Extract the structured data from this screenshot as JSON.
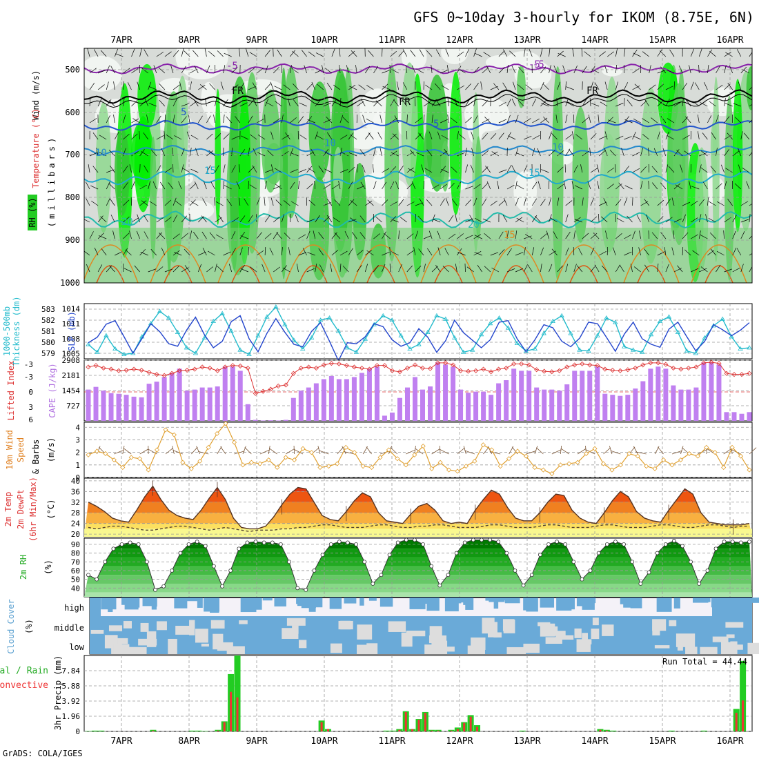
{
  "title": "GFS 0~10day 3-hourly for IKOM (8.75E, 6N)",
  "footer": "GrADS: COLA/IGES",
  "date_labels": [
    "7APR",
    "8APR",
    "9APR",
    "10APR",
    "11APR",
    "12APR",
    "13APR",
    "14APR",
    "15APR",
    "16APR"
  ],
  "colors": {
    "rh_green": "#22cc22",
    "rh_bright": "#00ff00",
    "cape_bar": "#c080f0",
    "li_line": "#dd3333",
    "slp_line": "#2244cc",
    "thk_line": "#22bbcc",
    "wind_line": "#e0a030",
    "precip_total": "#22cc22",
    "precip_conv": "#ee3333",
    "cloud_blue": "#6aaad8",
    "cloud_bg": "#f4f2f8"
  },
  "panels": {
    "profile": {
      "ylabel_wind": "Wind (m/s)",
      "ylabel_temp": "Temperature (°C)",
      "ylabel_rh": "RH (%)",
      "ylabel_p": "(millibars)",
      "levels": [
        "500",
        "600",
        "700",
        "800",
        "900",
        "1000"
      ],
      "contour_labels": [
        "-5",
        "FR",
        "5",
        "10",
        "15",
        "20",
        "-5",
        "FR",
        "5",
        "10",
        "15",
        "20",
        "10",
        "15",
        "FR",
        "-5"
      ]
    },
    "slp": {
      "ylabel_left": "1000-500mb",
      "ylabel_left2": "Thickness (dm)",
      "ylabel_right": "SLP (mb)",
      "thk_ticks": [
        "583",
        "582",
        "581",
        "580",
        "579"
      ],
      "slp_ticks": [
        "1014",
        "1011",
        "1008",
        "1005"
      ]
    },
    "cape": {
      "ylabel_left": "Lifted Index",
      "ylabel_right": "CAPE (J/kg)",
      "li_ticks": [
        "-3",
        "-3",
        "0",
        "3",
        "6"
      ],
      "cape_ticks": [
        "2908",
        "2181",
        "1454",
        "727"
      ]
    },
    "wind": {
      "ylabel1": "10m Wind",
      "ylabel2": "Speed",
      "ylabel3": "& Barbs",
      "unit": "(m/s)",
      "ticks": [
        "4",
        "3",
        "2",
        "1",
        "0"
      ]
    },
    "temp": {
      "ylabel1": "2m Temp",
      "ylabel2": "2m DewPt",
      "ylabel3": "(6hr Min/Max)",
      "unit": "(°C)",
      "ticks": [
        "40",
        "36",
        "32",
        "28",
        "24",
        "20"
      ]
    },
    "rh": {
      "ylabel": "2m RH",
      "unit": "(%)",
      "ticks": [
        "90",
        "80",
        "70",
        "60",
        "50",
        "40"
      ]
    },
    "cloud": {
      "ylabel": "Cloud Cover",
      "unit": "(%)",
      "levels": [
        "high",
        "middle",
        "low"
      ]
    },
    "precip": {
      "ylabel1": "Total / Rain",
      "ylabel2": "Convective",
      "ylabel3": "3hr Precip (mm)",
      "ticks": [
        "7.84",
        "5.88",
        "3.92",
        "1.96",
        "0"
      ],
      "run_total": "Run Total = 44.44"
    }
  },
  "chart_data": [
    {
      "type": "line",
      "name": "1000-500mb Thickness (dm)",
      "x_step_hours": 3,
      "ylim": [
        578.5,
        583.5
      ],
      "values": [
        579.8,
        579.1,
        580.6,
        579.4,
        578.9,
        579.0,
        580.5,
        581.7,
        582.8,
        582.2,
        580.9,
        579.5,
        579.0,
        580.4,
        581.9,
        582.6,
        581.0,
        579.3,
        578.9,
        580.6,
        582.3,
        583.2,
        581.6,
        580.2,
        579.4,
        580.4,
        582.0,
        582.2,
        581.0,
        579.5,
        579.1,
        580.3,
        581.6,
        582.4,
        582.0,
        580.6,
        579.4,
        579.8,
        580.9,
        582.4,
        582.1,
        580.4,
        579.1,
        579.3,
        580.7,
        581.7,
        582.2,
        581.3,
        579.9,
        579.2,
        579.4,
        580.8,
        581.9,
        582.4,
        580.8,
        579.3,
        579.2,
        580.6,
        582.2,
        581.8,
        579.6,
        579.3,
        579.1,
        580.7,
        581.9,
        582.3,
        580.9,
        579.2,
        579.0,
        580.4,
        581.5,
        582.1,
        580.5,
        579.4,
        579.5
      ]
    },
    {
      "type": "line",
      "name": "SLP (mb)",
      "x_step_hours": 3,
      "ylim": [
        1004,
        1015
      ],
      "values": [
        1007.2,
        1008.3,
        1010.9,
        1011.6,
        1008.4,
        1005.1,
        1008.0,
        1011.0,
        1009.4,
        1007.0,
        1006.5,
        1009.7,
        1012.3,
        1008.8,
        1006.2,
        1007.5,
        1011.4,
        1012.6,
        1008.0,
        1005.4,
        1009.1,
        1012.0,
        1009.3,
        1006.9,
        1006.4,
        1009.5,
        1011.2,
        1007.5,
        1003.6,
        1007.2,
        1007.0,
        1008.4,
        1011.0,
        1010.4,
        1007.8,
        1006.5,
        1007.2,
        1010.0,
        1008.3,
        1005.3,
        1007.6,
        1011.7,
        1009.2,
        1007.7,
        1006.2,
        1007.8,
        1011.3,
        1011.6,
        1008.0,
        1005.4,
        1007.8,
        1010.8,
        1010.2,
        1007.5,
        1006.4,
        1008.1,
        1011.3,
        1011.0,
        1008.3,
        1005.5,
        1008.9,
        1011.3,
        1008.0,
        1006.9,
        1006.3,
        1009.9,
        1011.3,
        1008.4,
        1005.6,
        1007.5,
        1010.8,
        1009.8,
        1008.6,
        1009.7,
        1011.2
      ]
    },
    {
      "type": "bar",
      "name": "CAPE (J/kg)",
      "x_step_hours": 3,
      "ylim": [
        0,
        2908
      ],
      "values": [
        1500,
        1630,
        1450,
        1330,
        1300,
        1250,
        1160,
        1130,
        1780,
        1880,
        2100,
        2300,
        2500,
        1450,
        1500,
        1600,
        1600,
        1650,
        2600,
        2600,
        2400,
        800,
        50,
        20,
        30,
        20,
        50,
        1100,
        1450,
        1600,
        1800,
        2000,
        2150,
        2000,
        2000,
        2100,
        2300,
        2500,
        2600,
        250,
        400,
        1100,
        1600,
        2100,
        1500,
        1650,
        2800,
        2700,
        2600,
        1500,
        1350,
        1400,
        1400,
        1250,
        1800,
        1950,
        2500,
        2400,
        2400,
        1600,
        1500,
        1500,
        1450,
        1750,
        2400,
        2400,
        2400,
        2600,
        1300,
        1250,
        1200,
        1250,
        1550,
        1900,
        2500,
        2600,
        2500,
        1700,
        1500,
        1500,
        1600,
        2800,
        2800,
        2700,
        420,
        420,
        340,
        420
      ]
    },
    {
      "type": "line",
      "name": "Lifted Index",
      "x_step_hours": 3,
      "ylim": [
        6,
        -5.5
      ],
      "values": [
        -4.2,
        -4.5,
        -4.0,
        -3.8,
        -3.5,
        -3.6,
        -3.8,
        -3.6,
        -3.2,
        -2.8,
        -2.6,
        -3.0,
        -3.5,
        -3.6,
        -3.8,
        -4.2,
        -4.0,
        -3.5,
        -4.2,
        -4.5,
        -4.4,
        -4.0,
        0.8,
        0.4,
        0.0,
        -0.6,
        -0.8,
        -3.0,
        -4.0,
        -4.2,
        -4.0,
        -4.6,
        -4.9,
        -4.8,
        -4.5,
        -4.2,
        -4.0,
        -3.8,
        -4.5,
        -4.5,
        -3.5,
        -3.3,
        -4.0,
        -4.6,
        -4.0,
        -3.9,
        -5.0,
        -5.0,
        -4.6,
        -3.5,
        -3.4,
        -3.5,
        -3.8,
        -3.3,
        -3.8,
        -4.0,
        -4.8,
        -4.8,
        -4.6,
        -3.7,
        -3.4,
        -3.3,
        -3.5,
        -4.2,
        -4.6,
        -4.8,
        -4.6,
        -4.5,
        -3.8,
        -3.6,
        -3.5,
        -3.7,
        -4.0,
        -4.6,
        -5.0,
        -5.0,
        -4.7,
        -4.0,
        -3.8,
        -4.0,
        -4.2,
        -5.0,
        -5.1,
        -4.9,
        -3.0,
        -2.8,
        -2.8,
        -3.0
      ]
    },
    {
      "type": "line",
      "name": "10m Wind Speed (m/s)",
      "x_step_hours": 3,
      "ylim": [
        0,
        4.4
      ],
      "values": [
        1.8,
        2.1,
        1.9,
        1.4,
        0.8,
        1.6,
        1.5,
        0.6,
        2.2,
        3.8,
        3.4,
        1.2,
        0.7,
        1.3,
        2.4,
        3.5,
        4.3,
        2.8,
        1.0,
        1.2,
        1.1,
        1.4,
        0.8,
        1.6,
        1.4,
        2.3,
        2.0,
        0.8,
        0.9,
        1.1,
        2.4,
        2.0,
        0.9,
        0.8,
        1.6,
        2.2,
        1.5,
        1.0,
        1.8,
        2.5,
        0.7,
        1.2,
        0.6,
        0.5,
        0.9,
        1.3,
        2.6,
        2.2,
        0.9,
        1.5,
        2.1,
        1.7,
        0.8,
        0.6,
        0.3,
        1.0,
        1.1,
        1.2,
        1.9,
        2.3,
        1.1,
        0.6,
        1.0,
        1.9,
        1.7,
        0.9,
        0.7,
        1.4,
        1.0,
        1.4,
        1.9,
        1.7,
        2.4,
        2.0,
        0.8,
        2.4,
        1.7,
        0.6
      ]
    },
    {
      "type": "area",
      "name": "2m Temp (°C)",
      "x_step_hours": 3,
      "ylim": [
        19,
        41
      ],
      "values": [
        32.0,
        30.5,
        28.5,
        26.0,
        25.0,
        24.5,
        29.0,
        34.0,
        38.0,
        33.0,
        29.0,
        27.0,
        26.0,
        25.5,
        29.0,
        33.5,
        37.5,
        33.0,
        26.0,
        22.5,
        22.0,
        22.0,
        23.0,
        26.5,
        31.0,
        35.0,
        37.5,
        37.0,
        32.0,
        27.0,
        25.5,
        25.0,
        28.5,
        32.5,
        35.5,
        34.0,
        28.0,
        25.0,
        24.5,
        24.0,
        27.5,
        30.5,
        31.5,
        29.0,
        25.0,
        24.0,
        24.5,
        24.0,
        29.0,
        33.0,
        36.5,
        35.0,
        30.0,
        26.0,
        25.0,
        25.0,
        28.0,
        32.0,
        35.0,
        34.5,
        29.0,
        26.0,
        24.5,
        24.0,
        28.0,
        32.5,
        36.0,
        34.0,
        28.5,
        26.0,
        25.0,
        24.5,
        29.0,
        33.0,
        37.0,
        35.0,
        28.0,
        24.5,
        24.0,
        23.5,
        23.5,
        23.5,
        24.0
      ]
    },
    {
      "type": "line",
      "name": "2m DewPt (°C)",
      "x_step_hours": 3,
      "ylim": [
        19,
        41
      ],
      "values": [
        22.5,
        22.0,
        22.5,
        23.0,
        23.0,
        22.5,
        22.0,
        21.5,
        21.5,
        22.0,
        22.5,
        23.0,
        23.0,
        22.5,
        22.0,
        21.5,
        22.0,
        22.5,
        22.0,
        21.5,
        21.0,
        21.5,
        21.5,
        21.5,
        22.0,
        22.0,
        22.5,
        22.5,
        23.0,
        23.5,
        23.5,
        23.0,
        22.5,
        22.5,
        22.5,
        23.0,
        23.5,
        23.5,
        23.0,
        22.5,
        22.5,
        23.0,
        23.0,
        23.5,
        23.5,
        23.0,
        22.5,
        22.5,
        22.5,
        23.0,
        23.5,
        23.5,
        23.0,
        22.5,
        22.5,
        22.5,
        23.0,
        23.5,
        23.5,
        23.0,
        22.5,
        22.5,
        22.5,
        23.0,
        23.5,
        23.5,
        23.0,
        22.5,
        22.5,
        22.5,
        23.0,
        23.5,
        23.5,
        23.0,
        22.5,
        22.5,
        23.0,
        23.5,
        23.5,
        23.0,
        22.5,
        23.0,
        23.0
      ]
    },
    {
      "type": "area",
      "name": "2m RH (%)",
      "x_step_hours": 3,
      "ylim": [
        30,
        97
      ],
      "values": [
        55,
        50,
        70,
        85,
        90,
        92,
        90,
        70,
        38,
        42,
        60,
        80,
        90,
        93,
        88,
        65,
        42,
        60,
        85,
        92,
        93,
        92,
        92,
        90,
        70,
        40,
        38,
        60,
        78,
        90,
        93,
        92,
        90,
        70,
        45,
        55,
        78,
        92,
        95,
        95,
        90,
        65,
        43,
        55,
        80,
        92,
        95,
        95,
        95,
        93,
        80,
        60,
        43,
        55,
        78,
        90,
        93,
        90,
        70,
        50,
        60,
        80,
        90,
        93,
        90,
        70,
        45,
        58,
        80,
        90,
        94,
        88,
        70,
        45,
        60,
        85,
        93,
        93,
        92,
        93
      ]
    },
    {
      "type": "bar",
      "name": "3hr Precip Total (mm)",
      "x_step_hours": 3,
      "ylim": [
        0,
        9.8
      ],
      "values": [
        0.05,
        0.1,
        0.1,
        0,
        0,
        0,
        0,
        0,
        0,
        0,
        0.2,
        0,
        0,
        0,
        0,
        0,
        0.1,
        0.1,
        0.05,
        0,
        0.2,
        1.3,
        7.4,
        10.2,
        0,
        0,
        0,
        0,
        0,
        0,
        0,
        0,
        0,
        0,
        0,
        0,
        1.4,
        0.3,
        0,
        0,
        0,
        0,
        0,
        0,
        0,
        0,
        0.1,
        0.1,
        0.3,
        2.6,
        0.3,
        1.6,
        2.5,
        0.2,
        0.2,
        0,
        0.2,
        0.5,
        1.2,
        2.1,
        0.8,
        0,
        0,
        0,
        0,
        0,
        0,
        0.1,
        0,
        0,
        0,
        0,
        0,
        0,
        0,
        0,
        0,
        0,
        0,
        0.3,
        0.2,
        0.1,
        0,
        0,
        0,
        0,
        0,
        0,
        0,
        0,
        0.1,
        0,
        0,
        0,
        0,
        0.1,
        0,
        0,
        0,
        0,
        2.9,
        9.1,
        0
      ]
    },
    {
      "type": "bar",
      "name": "3hr Precip Convective (mm)",
      "x_step_hours": 3,
      "ylim": [
        0,
        9.8
      ],
      "values": [
        0,
        0,
        0,
        0,
        0,
        0,
        0,
        0,
        0,
        0,
        0.1,
        0,
        0,
        0,
        0,
        0,
        0,
        0,
        0,
        0,
        0.1,
        1.2,
        5.1,
        4.4,
        0,
        0,
        0,
        0,
        0,
        0,
        0,
        0,
        0,
        0,
        0,
        0,
        1.2,
        0.3,
        0,
        0,
        0,
        0,
        0,
        0,
        0,
        0,
        0,
        0,
        0.2,
        2.5,
        0.3,
        1.5,
        2.4,
        0.1,
        0.1,
        0,
        0.1,
        0.3,
        1.1,
        1.9,
        0.6,
        0,
        0,
        0,
        0,
        0,
        0,
        0,
        0,
        0,
        0,
        0,
        0,
        0,
        0,
        0,
        0,
        0,
        0,
        0.2,
        0.1,
        0,
        0,
        0,
        0,
        0,
        0,
        0,
        0,
        0,
        0,
        0,
        0,
        0,
        0,
        0,
        0,
        0,
        0,
        0,
        2.4,
        4.0,
        0
      ]
    }
  ]
}
